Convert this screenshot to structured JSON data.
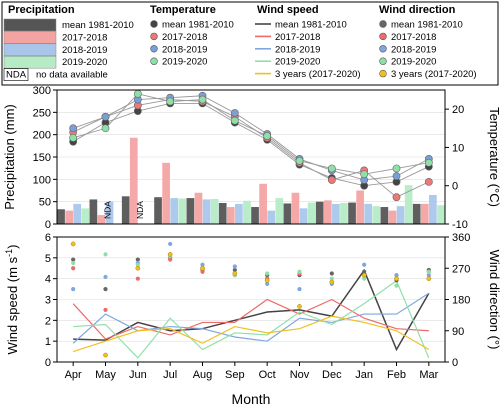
{
  "legend": {
    "precipitation": {
      "title": "Precipitation",
      "items": [
        {
          "label": "mean 1981-2010",
          "color": "#555555"
        },
        {
          "label": "2017-2018",
          "color": "#f4a3a3"
        },
        {
          "label": "2018-2019",
          "color": "#a9c6ea"
        },
        {
          "label": "2019-2020",
          "color": "#b5ecc6"
        }
      ],
      "nda_key": "NDA",
      "nda_text": "no data available"
    },
    "temperature": {
      "title": "Temperature",
      "items": [
        {
          "label": "mean 1981-2010",
          "color": "#444444"
        },
        {
          "label": "2017-2018",
          "color": "#ee7878"
        },
        {
          "label": "2018-2019",
          "color": "#7a9fd8"
        },
        {
          "label": "2019-2020",
          "color": "#8fe0a8"
        }
      ]
    },
    "wind_speed": {
      "title": "Wind speed",
      "items": [
        {
          "label": "mean 1981-2010",
          "color": "#444444"
        },
        {
          "label": "2017-2018",
          "color": "#ee6a6a"
        },
        {
          "label": "2018-2019",
          "color": "#7fa7dd"
        },
        {
          "label": "2019-2020",
          "color": "#8fe0a8"
        },
        {
          "label": "3 years (2017-2020)",
          "color": "#f0c020"
        }
      ]
    },
    "wind_direction": {
      "title": "Wind direction",
      "items": [
        {
          "label": "mean 1981-2010",
          "color": "#666666"
        },
        {
          "label": "2017-2018",
          "color": "#ee6a6a"
        },
        {
          "label": "2018-2019",
          "color": "#7fa7dd"
        },
        {
          "label": "2019-2020",
          "color": "#8fe0a8"
        },
        {
          "label": "3 years (2017-2020)",
          "color": "#f0c020"
        }
      ]
    }
  },
  "chart_data": [
    {
      "type": "bar",
      "panel": "top",
      "categories": [
        "Apr",
        "May",
        "Jun",
        "Jul",
        "Aug",
        "Sep",
        "Oct",
        "Nov",
        "Dec",
        "Jan",
        "Feb",
        "Mar"
      ],
      "ylabel": "Precipitation (mm)",
      "ylim": [
        0,
        300
      ],
      "yticks": [
        0,
        50,
        100,
        150,
        200,
        250,
        300
      ],
      "series": [
        {
          "name": "mean 1981-2010",
          "color": "#555555",
          "values": [
            33,
            55,
            62,
            60,
            58,
            47,
            38,
            46,
            50,
            48,
            38,
            45
          ]
        },
        {
          "name": "2017-2018",
          "color": "#f4a3a3",
          "values": [
            30,
            20,
            193,
            137,
            70,
            38,
            90,
            70,
            53,
            75,
            30,
            45
          ]
        },
        {
          "name": "2018-2019",
          "color": "#a9c6ea",
          "values": [
            45,
            50,
            null,
            58,
            55,
            45,
            30,
            35,
            45,
            45,
            40,
            65
          ]
        },
        {
          "name": "2019-2020",
          "color": "#b5ecc6",
          "values": [
            35,
            null,
            null,
            57,
            56,
            52,
            58,
            48,
            47,
            40,
            87,
            42
          ]
        }
      ],
      "nda_marks": [
        {
          "category": "May",
          "text": "NDA"
        },
        {
          "category": "Jun",
          "text": "NDA"
        }
      ],
      "ylabel2": "Temperature (°C)",
      "y2lim": [
        -10,
        25
      ],
      "y2ticks": [
        -10,
        0,
        10,
        20
      ],
      "temperature": [
        {
          "name": "mean 1981-2010",
          "color": "#444444",
          "values": [
            11.5,
            16.5,
            19.5,
            21.5,
            21.5,
            16.5,
            12.0,
            5.5,
            2.0,
            0.0,
            1.0,
            5.0
          ]
        },
        {
          "name": "2017-2018",
          "color": "#ee7878",
          "values": [
            14.0,
            18.0,
            21.0,
            22.5,
            22.0,
            18.0,
            12.5,
            6.0,
            1.5,
            4.0,
            -3.0,
            1.0
          ]
        },
        {
          "name": "2018-2019",
          "color": "#7a9fd8",
          "values": [
            15.0,
            18.0,
            22.5,
            23.0,
            23.5,
            19.0,
            13.5,
            7.0,
            4.0,
            1.5,
            2.5,
            7.0
          ]
        },
        {
          "name": "2019-2020",
          "color": "#8fe0a8",
          "values": [
            12.5,
            15.0,
            24.0,
            22.0,
            22.5,
            17.0,
            13.0,
            6.5,
            4.5,
            3.0,
            4.5,
            6.0
          ]
        }
      ]
    },
    {
      "type": "line",
      "panel": "bottom",
      "categories": [
        "Apr",
        "May",
        "Jun",
        "Jul",
        "Aug",
        "Sep",
        "Oct",
        "Nov",
        "Dec",
        "Jan",
        "Feb",
        "Mar"
      ],
      "xlabel": "Month",
      "ylabel": "Wind speed (m s",
      "ylabel_sup": "-1",
      "ylabel_end": ")",
      "ylim": [
        0,
        6
      ],
      "yticks": [
        0,
        1,
        2,
        3,
        4,
        5,
        6
      ],
      "series": [
        {
          "name": "mean 1981-2010",
          "color": "#444444",
          "values": [
            1.1,
            1.05,
            1.9,
            1.5,
            1.6,
            2.0,
            2.4,
            2.5,
            2.2,
            4.4,
            0.6,
            3.3
          ]
        },
        {
          "name": "2017-2018",
          "color": "#ee6a6a",
          "values": [
            2.8,
            1.1,
            1.7,
            1.3,
            1.9,
            1.9,
            3.0,
            2.3,
            3.0,
            2.1,
            1.6,
            1.5
          ]
        },
        {
          "name": "2018-2019",
          "color": "#7fa7dd",
          "values": [
            0.9,
            2.3,
            1.5,
            1.7,
            1.6,
            1.2,
            1.0,
            2.1,
            1.9,
            2.3,
            2.3,
            3.3
          ]
        },
        {
          "name": "2019-2020",
          "color": "#8fe0a8",
          "values": [
            1.7,
            1.8,
            0.2,
            2.1,
            0.6,
            1.4,
            1.3,
            2.4,
            1.8,
            2.8,
            3.9,
            0.2
          ]
        },
        {
          "name": "3 years (2017-2020)",
          "color": "#f0c020",
          "values": [
            0.5,
            1.0,
            1.5,
            1.6,
            0.9,
            1.7,
            1.4,
            1.6,
            2.2,
            1.9,
            1.5,
            0.6
          ]
        }
      ],
      "ylabel2": "Wind direction (°)",
      "y2lim": [
        0,
        360
      ],
      "y2ticks": [
        0,
        90,
        180,
        270,
        360
      ],
      "wind_direction": [
        {
          "name": "mean 1981-2010",
          "color": "#666666",
          "values": [
            295,
            210,
            295,
            300,
            265,
            265,
            250,
            250,
            255,
            260,
            235,
            265
          ]
        },
        {
          "name": "2017-2018",
          "color": "#ee6a6a",
          "values": [
            270,
            150,
            240,
            295,
            260,
            250,
            240,
            255,
            230,
            250,
            250,
            260
          ]
        },
        {
          "name": "2018-2019",
          "color": "#7fa7dd",
          "values": [
            210,
            245,
            285,
            340,
            280,
            275,
            225,
            210,
            225,
            280,
            250,
            250
          ]
        },
        {
          "name": "2019-2020",
          "color": "#8fe0a8",
          "values": [
            285,
            310,
            280,
            305,
            270,
            250,
            255,
            260,
            240,
            240,
            220,
            260
          ]
        },
        {
          "name": "3 years (2017-2020)",
          "color": "#f0c020",
          "values": [
            340,
            20,
            270,
            310,
            270,
            255,
            235,
            160,
            230,
            250,
            240,
            240
          ]
        }
      ]
    }
  ]
}
